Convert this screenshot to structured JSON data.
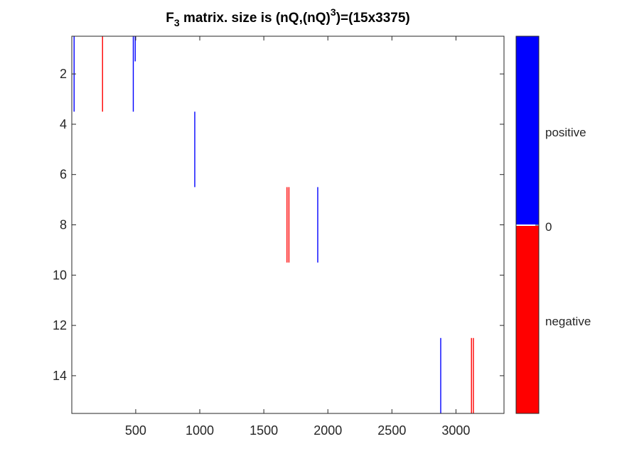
{
  "chart_data": {
    "type": "heatmap",
    "title": {
      "prefix": "F",
      "subscript": "3",
      "middle": " matrix. size is (nQ,(nQ)",
      "superscript": "3",
      "suffix": ")=(15x3375)"
    },
    "xlabel": "",
    "ylabel": "",
    "xlim": [
      1,
      3375
    ],
    "ylim": [
      0.5,
      15.5
    ],
    "y_reversed": true,
    "x_ticks": [
      500,
      1000,
      1500,
      2000,
      2500,
      3000
    ],
    "y_ticks": [
      2,
      4,
      6,
      8,
      10,
      12,
      14
    ],
    "colors": {
      "positive": "#0000ff",
      "negative": "#ff0000",
      "zero": "#ffffff"
    },
    "colorbar": {
      "labels": [
        "positive",
        "0",
        "negative"
      ],
      "split_fraction": 0.5
    },
    "stripes": [
      {
        "col": 19,
        "row_start": 1,
        "row_end": 3,
        "sign": "positive"
      },
      {
        "col": 241,
        "row_start": 1,
        "row_end": 3,
        "sign": "negative"
      },
      {
        "col": 481,
        "row_start": 1,
        "row_end": 3,
        "sign": "positive"
      },
      {
        "col": 496,
        "row_start": 1,
        "row_end": 1,
        "sign": "positive"
      },
      {
        "col": 961,
        "row_start": 4,
        "row_end": 6,
        "sign": "positive"
      },
      {
        "col": 1681,
        "row_start": 7,
        "row_end": 9,
        "sign": "negative"
      },
      {
        "col": 1696,
        "row_start": 7,
        "row_end": 9,
        "sign": "negative"
      },
      {
        "col": 1921,
        "row_start": 7,
        "row_end": 9,
        "sign": "positive"
      },
      {
        "col": 2881,
        "row_start": 13,
        "row_end": 15,
        "sign": "positive"
      },
      {
        "col": 3121,
        "row_start": 13,
        "row_end": 15,
        "sign": "negative"
      },
      {
        "col": 3136,
        "row_start": 13,
        "row_end": 15,
        "sign": "negative"
      }
    ]
  }
}
